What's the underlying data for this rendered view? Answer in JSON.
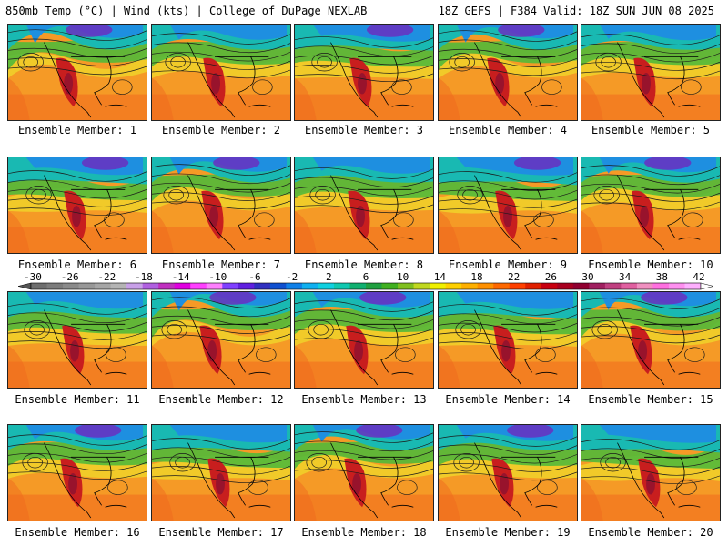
{
  "header": {
    "left": "850mb Temp (°C) | Wind (kts) | College of DuPage NEXLAB",
    "right": "18Z GEFS | F384 Valid: 18Z SUN JUN 08 2025"
  },
  "members": [
    {
      "label": "Ensemble Member: 1"
    },
    {
      "label": "Ensemble Member: 2"
    },
    {
      "label": "Ensemble Member: 3"
    },
    {
      "label": "Ensemble Member: 4"
    },
    {
      "label": "Ensemble Member: 5"
    },
    {
      "label": "Ensemble Member: 6"
    },
    {
      "label": "Ensemble Member: 7"
    },
    {
      "label": "Ensemble Member: 8"
    },
    {
      "label": "Ensemble Member: 9"
    },
    {
      "label": "Ensemble Member: 10"
    },
    {
      "label": "Ensemble Member: 11"
    },
    {
      "label": "Ensemble Member: 12"
    },
    {
      "label": "Ensemble Member: 13"
    },
    {
      "label": "Ensemble Member: 14"
    },
    {
      "label": "Ensemble Member: 15"
    },
    {
      "label": "Ensemble Member: 16"
    },
    {
      "label": "Ensemble Member: 17"
    },
    {
      "label": "Ensemble Member: 18"
    },
    {
      "label": "Ensemble Member: 19"
    },
    {
      "label": "Ensemble Member: 20"
    }
  ],
  "colorbar": {
    "ticks": [
      "-30",
      "-26",
      "-22",
      "-18",
      "-14",
      "-10",
      "-6",
      "-2",
      "2",
      "6",
      "10",
      "14",
      "18",
      "22",
      "26",
      "30",
      "34",
      "38",
      "42"
    ],
    "colors": [
      "#6e6e6e",
      "#7c7c7c",
      "#8a8a8a",
      "#989898",
      "#a6a6a6",
      "#b4b4b4",
      "#c8a0e8",
      "#b060e0",
      "#c030c0",
      "#e000e0",
      "#ff40ff",
      "#ff80ff",
      "#8040ff",
      "#6020e0",
      "#3030c0",
      "#1050d0",
      "#1080e8",
      "#10b0f0",
      "#10d0e0",
      "#10c8b0",
      "#10b070",
      "#20a040",
      "#40b020",
      "#80c020",
      "#c0d820",
      "#f0f000",
      "#ffd000",
      "#ffb000",
      "#ff9000",
      "#ff6800",
      "#ff4000",
      "#e02000",
      "#c80010",
      "#a80020",
      "#900030",
      "#a02060",
      "#c04080",
      "#e060a0",
      "#f090c0",
      "#ff70e0",
      "#ff90f0",
      "#ffb0ff"
    ]
  },
  "map_colors": {
    "cold": "#6a2fc0",
    "cool": "#1e8fe0",
    "mild": "#19b9b2",
    "green": "#52b93a",
    "yellow": "#f0d22a",
    "orange": "#f59a26",
    "warm": "#f06a1e",
    "hot": "#c81e1e",
    "extreme": "#8c1030"
  }
}
